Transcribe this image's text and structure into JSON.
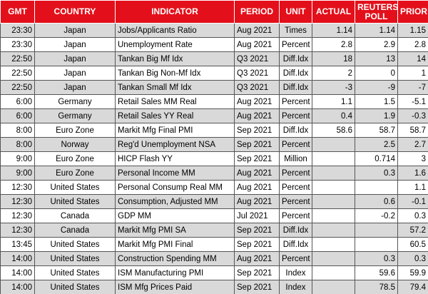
{
  "table": {
    "header": [
      "GMT",
      "COUNTRY",
      "INDICATOR",
      "PERIOD",
      "UNIT",
      "ACTUAL",
      "REUTERS POLL",
      "PRIOR"
    ],
    "rows": [
      [
        "23:30",
        "Japan",
        "Jobs/Applicants Ratio",
        "Aug 2021",
        "Times",
        "1.14",
        "1.14",
        "1.15"
      ],
      [
        "23:30",
        "Japan",
        "Unemployment Rate",
        "Aug 2021",
        "Percent",
        "2.8",
        "2.9",
        "2.8"
      ],
      [
        "22:50",
        "Japan",
        "Tankan Big Mf Idx",
        "Q3 2021",
        "Diff.Idx",
        "18",
        "13",
        "14"
      ],
      [
        "22:50",
        "Japan",
        "Tankan Big Non-Mf Idx",
        "Q3 2021",
        "Diff.Idx",
        "2",
        "0",
        "1"
      ],
      [
        "22:50",
        "Japan",
        "Tankan Small Mf Idx",
        "Q3 2021",
        "Diff.Idx",
        "-3",
        "-9",
        "-7"
      ],
      [
        "6:00",
        "Germany",
        "Retail Sales MM Real",
        "Aug 2021",
        "Percent",
        "1.1",
        "1.5",
        "-5.1"
      ],
      [
        "6:00",
        "Germany",
        "Retail Sales YY Real",
        "Aug 2021",
        "Percent",
        "0.4",
        "1.9",
        "-0.3"
      ],
      [
        "8:00",
        "Euro Zone",
        "Markit Mfg Final PMI",
        "Sep 2021",
        "Diff.Idx",
        "58.6",
        "58.7",
        "58.7"
      ],
      [
        "8:00",
        "Norway",
        "Reg'd Unemployment NSA",
        "Sep 2021",
        "Percent",
        null,
        "2.5",
        "2.7"
      ],
      [
        "9:00",
        "Euro Zone",
        "HICP Flash YY",
        "Sep 2021",
        "Million",
        null,
        "0.714",
        "3"
      ],
      [
        "9:00",
        "Euro Zone",
        "Personal Income MM",
        "Aug 2021",
        "Percent",
        null,
        "0.3",
        "1.6"
      ],
      [
        "12:30",
        "United States",
        "Personal Consump Real MM",
        "Aug 2021",
        "Percent",
        null,
        null,
        "1.1"
      ],
      [
        "12:30",
        "United States",
        "Consumption, Adjusted MM",
        "Aug 2021",
        "Percent",
        null,
        "0.6",
        "-0.1"
      ],
      [
        "12:30",
        "Canada",
        "GDP MM",
        "Jul 2021",
        "Percent",
        null,
        "-0.2",
        "0.3"
      ],
      [
        "12:30",
        "Canada",
        "Markit Mfg PMI SA",
        "Sep 2021",
        "Diff.Idx",
        null,
        null,
        "57.2"
      ],
      [
        "13:45",
        "United States",
        "Markit Mfg PMI Final",
        "Sep 2021",
        "Diff.Idx",
        null,
        null,
        "60.5"
      ],
      [
        "14:00",
        "United States",
        "Construction Spending MM",
        "Aug 2021",
        "Percent",
        null,
        "0.3",
        "0.3"
      ],
      [
        "14:00",
        "United States",
        "ISM Manufacturing PMI",
        "Sep 2021",
        "Index",
        null,
        "59.6",
        "59.9"
      ],
      [
        "14:00",
        "United States",
        "ISM Mfg Prices Paid",
        "Sep 2021",
        "Index",
        null,
        "78.5",
        "79.4"
      ]
    ]
  }
}
